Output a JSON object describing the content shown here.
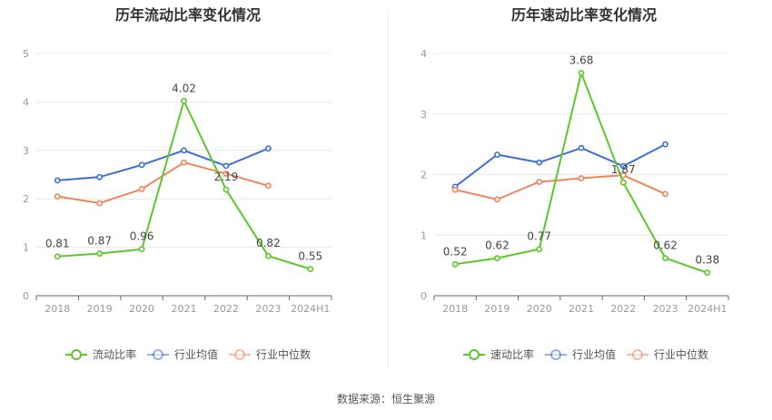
{
  "source_text": "数据来源：恒生聚源",
  "colors": {
    "current": "#5cc72a",
    "average": "#3b6fd6",
    "median": "#f0845a",
    "grid": "#e8e8e8",
    "axis": "#999999",
    "title": "#333333"
  },
  "chart_data": [
    {
      "type": "line",
      "title": "历年流动比率变化情况",
      "xlabel": "",
      "ylabel": "",
      "categories": [
        "2018",
        "2019",
        "2020",
        "2021",
        "2022",
        "2023",
        "2024H1"
      ],
      "ylim": [
        0,
        5
      ],
      "yticks": [
        "0",
        "1",
        "2",
        "3",
        "4",
        "5"
      ],
      "grid": true,
      "legend_position": "bottom",
      "series": [
        {
          "name": "流动比率",
          "color_key": "current",
          "values": [
            0.81,
            0.87,
            0.96,
            4.02,
            2.19,
            0.82,
            0.55
          ],
          "labels": [
            "0.81",
            "0.87",
            "0.96",
            "4.02",
            "2.19",
            "0.82",
            "0.55"
          ]
        },
        {
          "name": "行业均值",
          "color_key": "average",
          "values": [
            2.38,
            2.45,
            2.7,
            3.0,
            2.68,
            3.04,
            null
          ]
        },
        {
          "name": "行业中位数",
          "color_key": "median",
          "values": [
            2.05,
            1.91,
            2.2,
            2.75,
            2.52,
            2.27,
            null
          ]
        }
      ]
    },
    {
      "type": "line",
      "title": "历年速动比率变化情况",
      "xlabel": "",
      "ylabel": "",
      "categories": [
        "2018",
        "2019",
        "2020",
        "2021",
        "2022",
        "2023",
        "2024H1"
      ],
      "ylim": [
        0,
        4
      ],
      "yticks": [
        "0",
        "1",
        "2",
        "3",
        "4"
      ],
      "grid": true,
      "legend_position": "bottom",
      "series": [
        {
          "name": "速动比率",
          "color_key": "current",
          "values": [
            0.52,
            0.62,
            0.77,
            3.68,
            1.87,
            0.62,
            0.38
          ],
          "labels": [
            "0.52",
            "0.62",
            "0.77",
            "3.68",
            "1.87",
            "0.62",
            "0.38"
          ]
        },
        {
          "name": "行业均值",
          "color_key": "average",
          "values": [
            1.8,
            2.33,
            2.2,
            2.44,
            2.14,
            2.5,
            null
          ]
        },
        {
          "name": "行业中位数",
          "color_key": "median",
          "values": [
            1.75,
            1.59,
            1.88,
            1.94,
            1.99,
            1.68,
            null
          ]
        }
      ]
    }
  ]
}
